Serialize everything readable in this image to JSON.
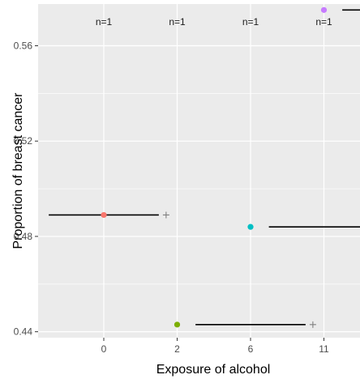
{
  "chart_data": {
    "type": "scatter",
    "xlabel": "Exposure of alcohol",
    "ylabel": "Proportion of breast cancer",
    "categories": [
      "0",
      "2",
      "6",
      "11"
    ],
    "y_ticks": [
      "0.44",
      "0.48",
      "0.52",
      "0.56"
    ],
    "ylim": [
      0.4375,
      0.5775
    ],
    "grid": true,
    "points": [
      {
        "category": "0",
        "y": 0.489,
        "ci_low": -0.75,
        "ci_high": 0.75,
        "color": "#F8766D",
        "annotation": "n=1"
      },
      {
        "category": "2",
        "y": 0.443,
        "ci_low": 1.25,
        "ci_high": 2.75,
        "color": "#7CAE00",
        "annotation": "n=1"
      },
      {
        "category": "6",
        "y": 0.484,
        "ci_low": 2.25,
        "ci_high": 3.75,
        "color": "#00BFC4",
        "annotation": "n=1"
      },
      {
        "category": "11",
        "y": 0.575,
        "ci_low": 3.25,
        "ci_high": 4.75,
        "color": "#C77CFF",
        "annotation": "n=1"
      }
    ],
    "plus_marker_color": "#7f7f7f",
    "panel_background": "#EBEBEB",
    "grid_color": "#FFFFFF"
  }
}
